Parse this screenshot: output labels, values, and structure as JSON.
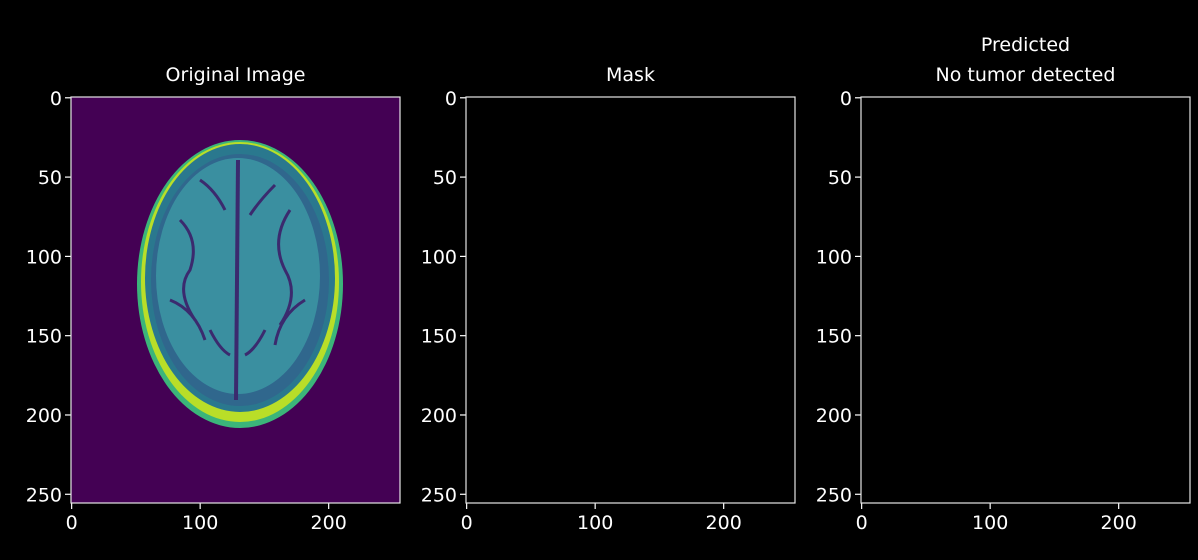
{
  "chart_data": [
    {
      "type": "image",
      "title": [
        "Original Image"
      ],
      "background": "#440154",
      "xlim": [
        -0.5,
        255.5
      ],
      "ylim": [
        255.5,
        -0.5
      ],
      "xticks": [
        0,
        100,
        200
      ],
      "yticks": [
        0,
        50,
        100,
        150,
        200,
        250
      ]
    },
    {
      "type": "image",
      "title": [
        "Mask"
      ],
      "background": "#000000",
      "xlim": [
        -0.5,
        255.5
      ],
      "ylim": [
        255.5,
        -0.5
      ],
      "xticks": [
        0,
        100,
        200
      ],
      "yticks": [
        0,
        50,
        100,
        150,
        200,
        250
      ]
    },
    {
      "type": "image",
      "title": [
        "Predicted",
        "No tumor detected"
      ],
      "background": "#000000",
      "xlim": [
        -0.5,
        255.5
      ],
      "ylim": [
        255.5,
        -0.5
      ],
      "xticks": [
        0,
        100,
        200
      ],
      "yticks": [
        0,
        50,
        100,
        150,
        200,
        250
      ]
    }
  ]
}
